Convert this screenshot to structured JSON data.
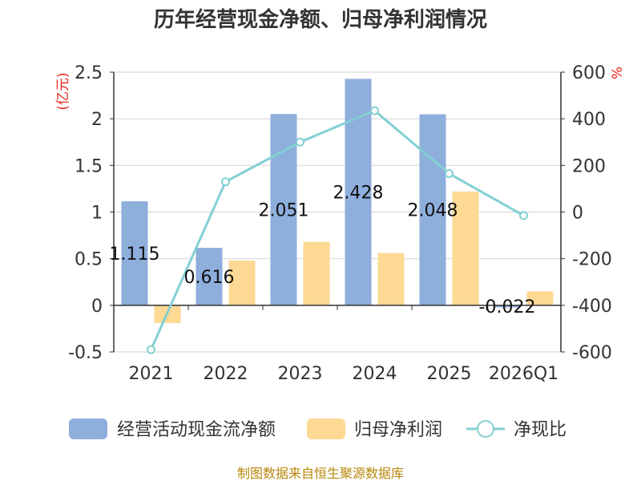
{
  "title": "历年经营现金净额、归母净利润情况",
  "source": "制图数据来自恒生聚源数据库",
  "colors": {
    "cash": "#8eaedc",
    "profit": "#fdd993",
    "ratio": "#82d0d2",
    "unit": "#e8261a",
    "axis": "#333333",
    "grid": "#d9d9d9"
  },
  "chart_data": {
    "type": "bar",
    "categories": [
      "2021",
      "2022",
      "2023",
      "2024",
      "2025",
      "2026Q1"
    ],
    "series": [
      {
        "name": "经营活动现金流净额",
        "axis": "left",
        "kind": "bar",
        "values": [
          1.115,
          0.616,
          2.051,
          2.428,
          2.048,
          -0.022
        ],
        "labels": [
          "1.115",
          "0.616",
          "2.051",
          "2.428",
          "2.048",
          "-0.022"
        ]
      },
      {
        "name": "归母净利润",
        "axis": "left",
        "kind": "bar",
        "values": [
          -0.19,
          0.48,
          0.68,
          0.56,
          1.22,
          0.15
        ]
      },
      {
        "name": "净现比",
        "axis": "right",
        "kind": "line",
        "values": [
          -590,
          130,
          300,
          435,
          165,
          -15
        ]
      }
    ],
    "y_left": {
      "label": "(亿元)",
      "ylim": [
        -0.5,
        2.5
      ],
      "ticks": [
        -0.5,
        0,
        0.5,
        1,
        1.5,
        2,
        2.5
      ],
      "tick_labels": [
        "-0.5",
        "0",
        "0.5",
        "1",
        "1.5",
        "2",
        "2.5"
      ]
    },
    "y_right": {
      "label": "%",
      "ylim": [
        -600,
        600
      ],
      "ticks": [
        -600,
        -400,
        -200,
        0,
        200,
        400,
        600
      ],
      "tick_labels": [
        "-600",
        "-400",
        "-200",
        "0",
        "200",
        "400",
        "600"
      ]
    },
    "legend": {
      "position": "bottom",
      "items": [
        "经营活动现金流净额",
        "归母净利润",
        "净现比"
      ]
    },
    "grid": true
  }
}
